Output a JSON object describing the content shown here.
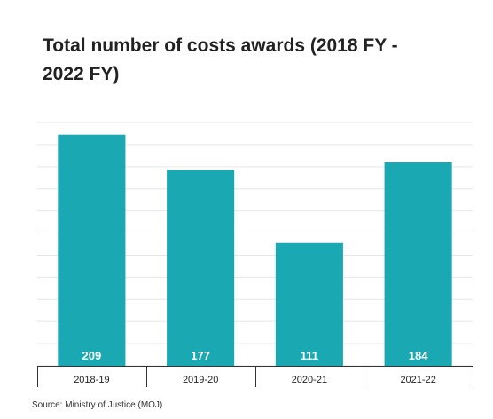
{
  "source": "Source: Ministry of Justice (MOJ)",
  "colors": {
    "bar": "#1aa9b2",
    "grid": "#e6e6e6",
    "axis": "#333333",
    "bar_label": "#ffffff"
  },
  "chart_data": {
    "type": "bar",
    "title": "Total number of costs awards (2018 FY - 2022 FY)",
    "xlabel": "",
    "ylabel": "",
    "categories": [
      "2018-19",
      "2019-20",
      "2020-21",
      "2021-22"
    ],
    "values": [
      209,
      177,
      111,
      184
    ],
    "value_labels": [
      "209",
      "177",
      "111",
      "184"
    ],
    "ylim": [
      0,
      220
    ],
    "grid": true,
    "legend": "none"
  }
}
